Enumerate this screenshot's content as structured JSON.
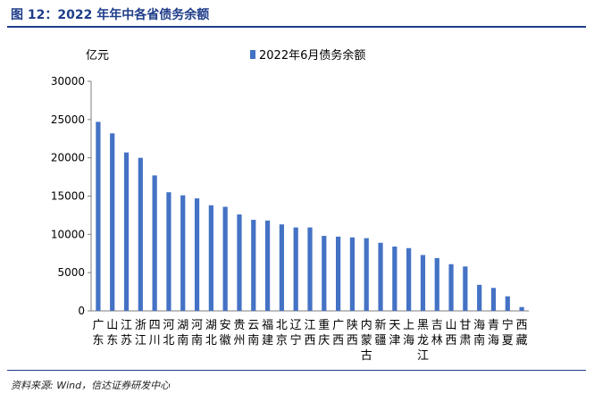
{
  "figure_title": "图 12：2022 年年中各省债务余额",
  "source_note": "资料来源: Wind，信达证券研发中心",
  "colors": {
    "accent": "#1f3d8a",
    "bar": "#4472c4",
    "axis": "#7f7f7f",
    "text": "#000000"
  },
  "chart_data": {
    "type": "bar",
    "unit_label": "亿元",
    "legend_position": "top",
    "grid": false,
    "ylim": [
      0,
      30000
    ],
    "yticks": [
      0,
      5000,
      10000,
      15000,
      20000,
      25000,
      30000
    ],
    "categories": [
      "广东",
      "山东",
      "江苏",
      "浙江",
      "四川",
      "河北",
      "湖南",
      "河南",
      "湖北",
      "安徽",
      "贵州",
      "云南",
      "福建",
      "北京",
      "辽宁",
      "江西",
      "重庆",
      "广西",
      "陕西",
      "内蒙古",
      "新疆",
      "天津",
      "上海",
      "黑龙江",
      "吉林",
      "山西",
      "甘肃",
      "海南",
      "青海",
      "宁夏",
      "西藏"
    ],
    "series": [
      {
        "name": "2022年6月债务余额",
        "values": [
          24700,
          23200,
          20700,
          20000,
          17700,
          15500,
          15100,
          14700,
          13800,
          13600,
          12600,
          11900,
          11800,
          11300,
          10900,
          10900,
          9800,
          9700,
          9600,
          9500,
          8900,
          8400,
          8200,
          7300,
          6900,
          6100,
          5800,
          3400,
          3000,
          1900,
          500
        ]
      }
    ]
  }
}
